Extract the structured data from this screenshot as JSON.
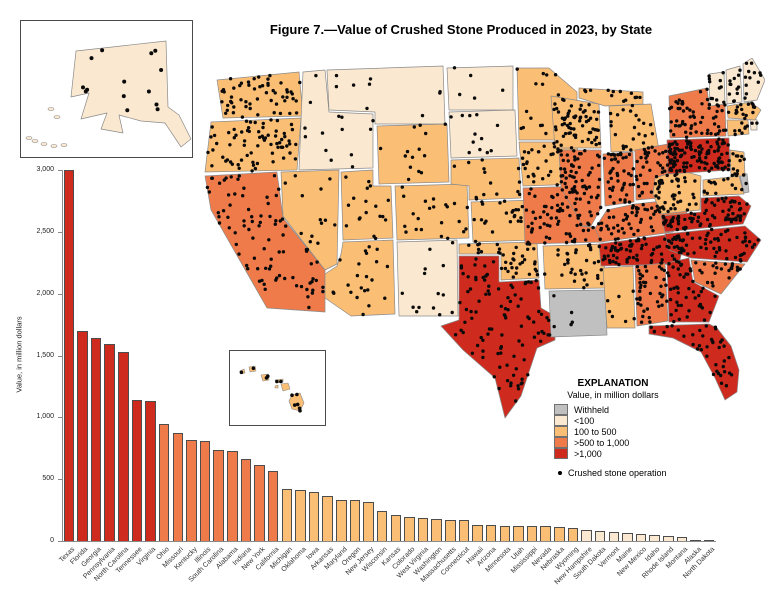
{
  "figure_title": "Figure 7.—Value of Crushed Stone Produced in 2023, by State",
  "explanation": {
    "title": "EXPLANATION",
    "subtitle": "Value, in million dollars",
    "classes": [
      {
        "key": "withheld",
        "label": "Withheld"
      },
      {
        "key": "lt100",
        "label": "<100"
      },
      {
        "key": "c100to500",
        "label": "100 to 500"
      },
      {
        "key": "c500to1000",
        "label": ">500 to 1,000"
      },
      {
        "key": "gt1000",
        "label": ">1,000"
      }
    ],
    "point_label": "Crushed stone operation"
  },
  "colors": {
    "withheld": "#C0C0C0",
    "lt100": "#FAE8D0",
    "c100to500": "#FBBE75",
    "c500to1000": "#F07B4A",
    "gt1000": "#CE2A1D",
    "border": "#8a8a8a",
    "dot": "#0a0a0a"
  },
  "chart_data": {
    "type": "bar",
    "title": "Value of Crushed Stone Produced in 2023, by State",
    "xlabel": "",
    "ylabel": "Value, in million dollars",
    "ylim": [
      0,
      3000
    ],
    "yticks": [
      {
        "value": 0,
        "label": "0"
      },
      {
        "value": 500,
        "label": "500"
      },
      {
        "value": 1000,
        "label": "1,000"
      },
      {
        "value": 1500,
        "label": "1,500"
      },
      {
        "value": 2000,
        "label": "2,000"
      },
      {
        "value": 2500,
        "label": "2,500"
      },
      {
        "value": 3000,
        "label": "3,000"
      }
    ],
    "grid": false,
    "legend_position": "inside-map-lower-right",
    "color_rule": ">1,000 dark red; >500 to 1,000 orange; 100 to 500 light orange; <100 cream",
    "categories": [
      "Texas",
      "Florida",
      "Georgia",
      "Pennsylvania",
      "North Carolina",
      "Tennessee",
      "Virginia",
      "Ohio",
      "Missouri",
      "Kentucky",
      "Illinois",
      "South Carolina",
      "Alabama",
      "Indiana",
      "New York",
      "California",
      "Michigan",
      "Oklahoma",
      "Iowa",
      "Arkansas",
      "Maryland",
      "Oregon",
      "New Jersey",
      "Wisconsin",
      "Kansas",
      "Colorado",
      "West Virginia",
      "Washington",
      "Massachusetts",
      "Connecticut",
      "Hawaii",
      "Arizona",
      "Minnesota",
      "Utah",
      "Mississippi",
      "Nevada",
      "Nebraska",
      "Wyoming",
      "New Hampshire",
      "South Dakota",
      "Vermont",
      "Maine",
      "New Mexico",
      "Idaho",
      "Rhode Island",
      "Montana",
      "Alaska",
      "North Dakota"
    ],
    "values": [
      3000,
      1700,
      1640,
      1590,
      1530,
      1140,
      1130,
      950,
      875,
      820,
      810,
      740,
      725,
      665,
      615,
      570,
      420,
      410,
      395,
      365,
      335,
      330,
      315,
      240,
      210,
      195,
      190,
      180,
      172,
      170,
      131,
      126,
      124,
      122,
      120,
      118,
      115,
      108,
      90,
      84,
      74,
      62,
      54,
      48,
      38,
      30,
      12,
      5
    ]
  },
  "map": {
    "states": [
      {
        "abbr": "WA",
        "name": "Washington",
        "class": "c100to500",
        "dots": 55
      },
      {
        "abbr": "OR",
        "name": "Oregon",
        "class": "c100to500",
        "dots": 70
      },
      {
        "abbr": "CA",
        "name": "California",
        "class": "c500to1000",
        "dots": 85
      },
      {
        "abbr": "NV",
        "name": "Nevada",
        "class": "c100to500",
        "dots": 13
      },
      {
        "abbr": "ID",
        "name": "Idaho",
        "class": "lt100",
        "dots": 14
      },
      {
        "abbr": "MT",
        "name": "Montana",
        "class": "lt100",
        "dots": 9
      },
      {
        "abbr": "WY",
        "name": "Wyoming",
        "class": "c100to500",
        "dots": 14
      },
      {
        "abbr": "UT",
        "name": "Utah",
        "class": "c100to500",
        "dots": 18
      },
      {
        "abbr": "CO",
        "name": "Colorado",
        "class": "c100to500",
        "dots": 22
      },
      {
        "abbr": "AZ",
        "name": "Arizona",
        "class": "c100to500",
        "dots": 22
      },
      {
        "abbr": "NM",
        "name": "New Mexico",
        "class": "lt100",
        "dots": 14
      },
      {
        "abbr": "ND",
        "name": "North Dakota",
        "class": "lt100",
        "dots": 5
      },
      {
        "abbr": "SD",
        "name": "South Dakota",
        "class": "lt100",
        "dots": 12
      },
      {
        "abbr": "NE",
        "name": "Nebraska",
        "class": "c100to500",
        "dots": 14
      },
      {
        "abbr": "KS",
        "name": "Kansas",
        "class": "c100to500",
        "dots": 28
      },
      {
        "abbr": "OK",
        "name": "Oklahoma",
        "class": "c100to500",
        "dots": 38
      },
      {
        "abbr": "TX",
        "name": "Texas",
        "class": "gt1000",
        "dots": 100
      },
      {
        "abbr": "MN",
        "name": "Minnesota",
        "class": "c100to500",
        "dots": 22
      },
      {
        "abbr": "IA",
        "name": "Iowa",
        "class": "c100to500",
        "dots": 40
      },
      {
        "abbr": "MO",
        "name": "Missouri",
        "class": "c500to1000",
        "dots": 55
      },
      {
        "abbr": "AR",
        "name": "Arkansas",
        "class": "c100to500",
        "dots": 35
      },
      {
        "abbr": "LA",
        "name": "Louisiana",
        "class": "withheld",
        "dots": 4
      },
      {
        "abbr": "WI",
        "name": "Wisconsin",
        "class": "c100to500",
        "dots": 55
      },
      {
        "abbr": "IL",
        "name": "Illinois",
        "class": "c500to1000",
        "dots": 55
      },
      {
        "abbr": "MI",
        "name": "Michigan",
        "class": "c100to500",
        "dots": 35
      },
      {
        "abbr": "IN",
        "name": "Indiana",
        "class": "c500to1000",
        "dots": 45
      },
      {
        "abbr": "OH",
        "name": "Ohio",
        "class": "c500to1000",
        "dots": 65
      },
      {
        "abbr": "KY",
        "name": "Kentucky",
        "class": "c500to1000",
        "dots": 65
      },
      {
        "abbr": "TN",
        "name": "Tennessee",
        "class": "gt1000",
        "dots": 70
      },
      {
        "abbr": "MS",
        "name": "Mississippi",
        "class": "c100to500",
        "dots": 7
      },
      {
        "abbr": "AL",
        "name": "Alabama",
        "class": "c500to1000",
        "dots": 40
      },
      {
        "abbr": "GA",
        "name": "Georgia",
        "class": "gt1000",
        "dots": 45
      },
      {
        "abbr": "FL",
        "name": "Florida",
        "class": "gt1000",
        "dots": 40
      },
      {
        "abbr": "SC",
        "name": "South Carolina",
        "class": "c500to1000",
        "dots": 22
      },
      {
        "abbr": "NC",
        "name": "North Carolina",
        "class": "gt1000",
        "dots": 60
      },
      {
        "abbr": "VA",
        "name": "Virginia",
        "class": "gt1000",
        "dots": 70
      },
      {
        "abbr": "WV",
        "name": "West Virginia",
        "class": "c100to500",
        "dots": 22
      },
      {
        "abbr": "MD",
        "name": "Maryland",
        "class": "c100to500",
        "dots": 13
      },
      {
        "abbr": "DE",
        "name": "Delaware",
        "class": "withheld",
        "dots": 1
      },
      {
        "abbr": "NJ",
        "name": "New Jersey",
        "class": "c100to500",
        "dots": 13
      },
      {
        "abbr": "PA",
        "name": "Pennsylvania",
        "class": "gt1000",
        "dots": 95
      },
      {
        "abbr": "NY",
        "name": "New York",
        "class": "c500to1000",
        "dots": 60
      },
      {
        "abbr": "CT",
        "name": "Connecticut",
        "class": "c100to500",
        "dots": 8
      },
      {
        "abbr": "RI",
        "name": "Rhode Island",
        "class": "lt100",
        "dots": 2
      },
      {
        "abbr": "MA",
        "name": "Massachusetts",
        "class": "c100to500",
        "dots": 16
      },
      {
        "abbr": "VT",
        "name": "Vermont",
        "class": "lt100",
        "dots": 12
      },
      {
        "abbr": "NH",
        "name": "New Hampshire",
        "class": "lt100",
        "dots": 12
      },
      {
        "abbr": "ME",
        "name": "Maine",
        "class": "lt100",
        "dots": 12
      }
    ],
    "insets": {
      "alaska": {
        "name": "Alaska",
        "class": "lt100",
        "dots": 14
      },
      "hawaii": {
        "name": "Hawaii",
        "class": "c100to500",
        "dots": 12
      }
    }
  }
}
